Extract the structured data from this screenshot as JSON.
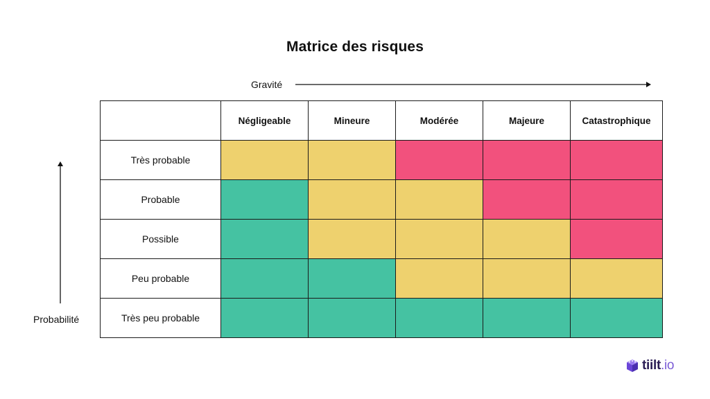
{
  "title": "Matrice des risques",
  "x_axis_label": "Gravité",
  "y_axis_label": "Probabilité",
  "columns": [
    "Négligeable",
    "Mineure",
    "Modérée",
    "Majeure",
    "Catastrophique"
  ],
  "rows": [
    {
      "label": "Très probable",
      "cells": [
        "yellow",
        "yellow",
        "red",
        "red",
        "red"
      ]
    },
    {
      "label": "Probable",
      "cells": [
        "green",
        "yellow",
        "yellow",
        "red",
        "red"
      ]
    },
    {
      "label": "Possible",
      "cells": [
        "green",
        "yellow",
        "yellow",
        "yellow",
        "red"
      ]
    },
    {
      "label": "Peu probable",
      "cells": [
        "green",
        "green",
        "yellow",
        "yellow",
        "yellow"
      ]
    },
    {
      "label": "Très peu probable",
      "cells": [
        "green",
        "green",
        "green",
        "green",
        "green"
      ]
    }
  ],
  "colors": {
    "green": "#45c2a2",
    "yellow": "#eed16e",
    "red": "#f2517d"
  },
  "logo": {
    "name": "tiilt",
    "suffix": ".io",
    "icon": "cube-logo-icon"
  }
}
